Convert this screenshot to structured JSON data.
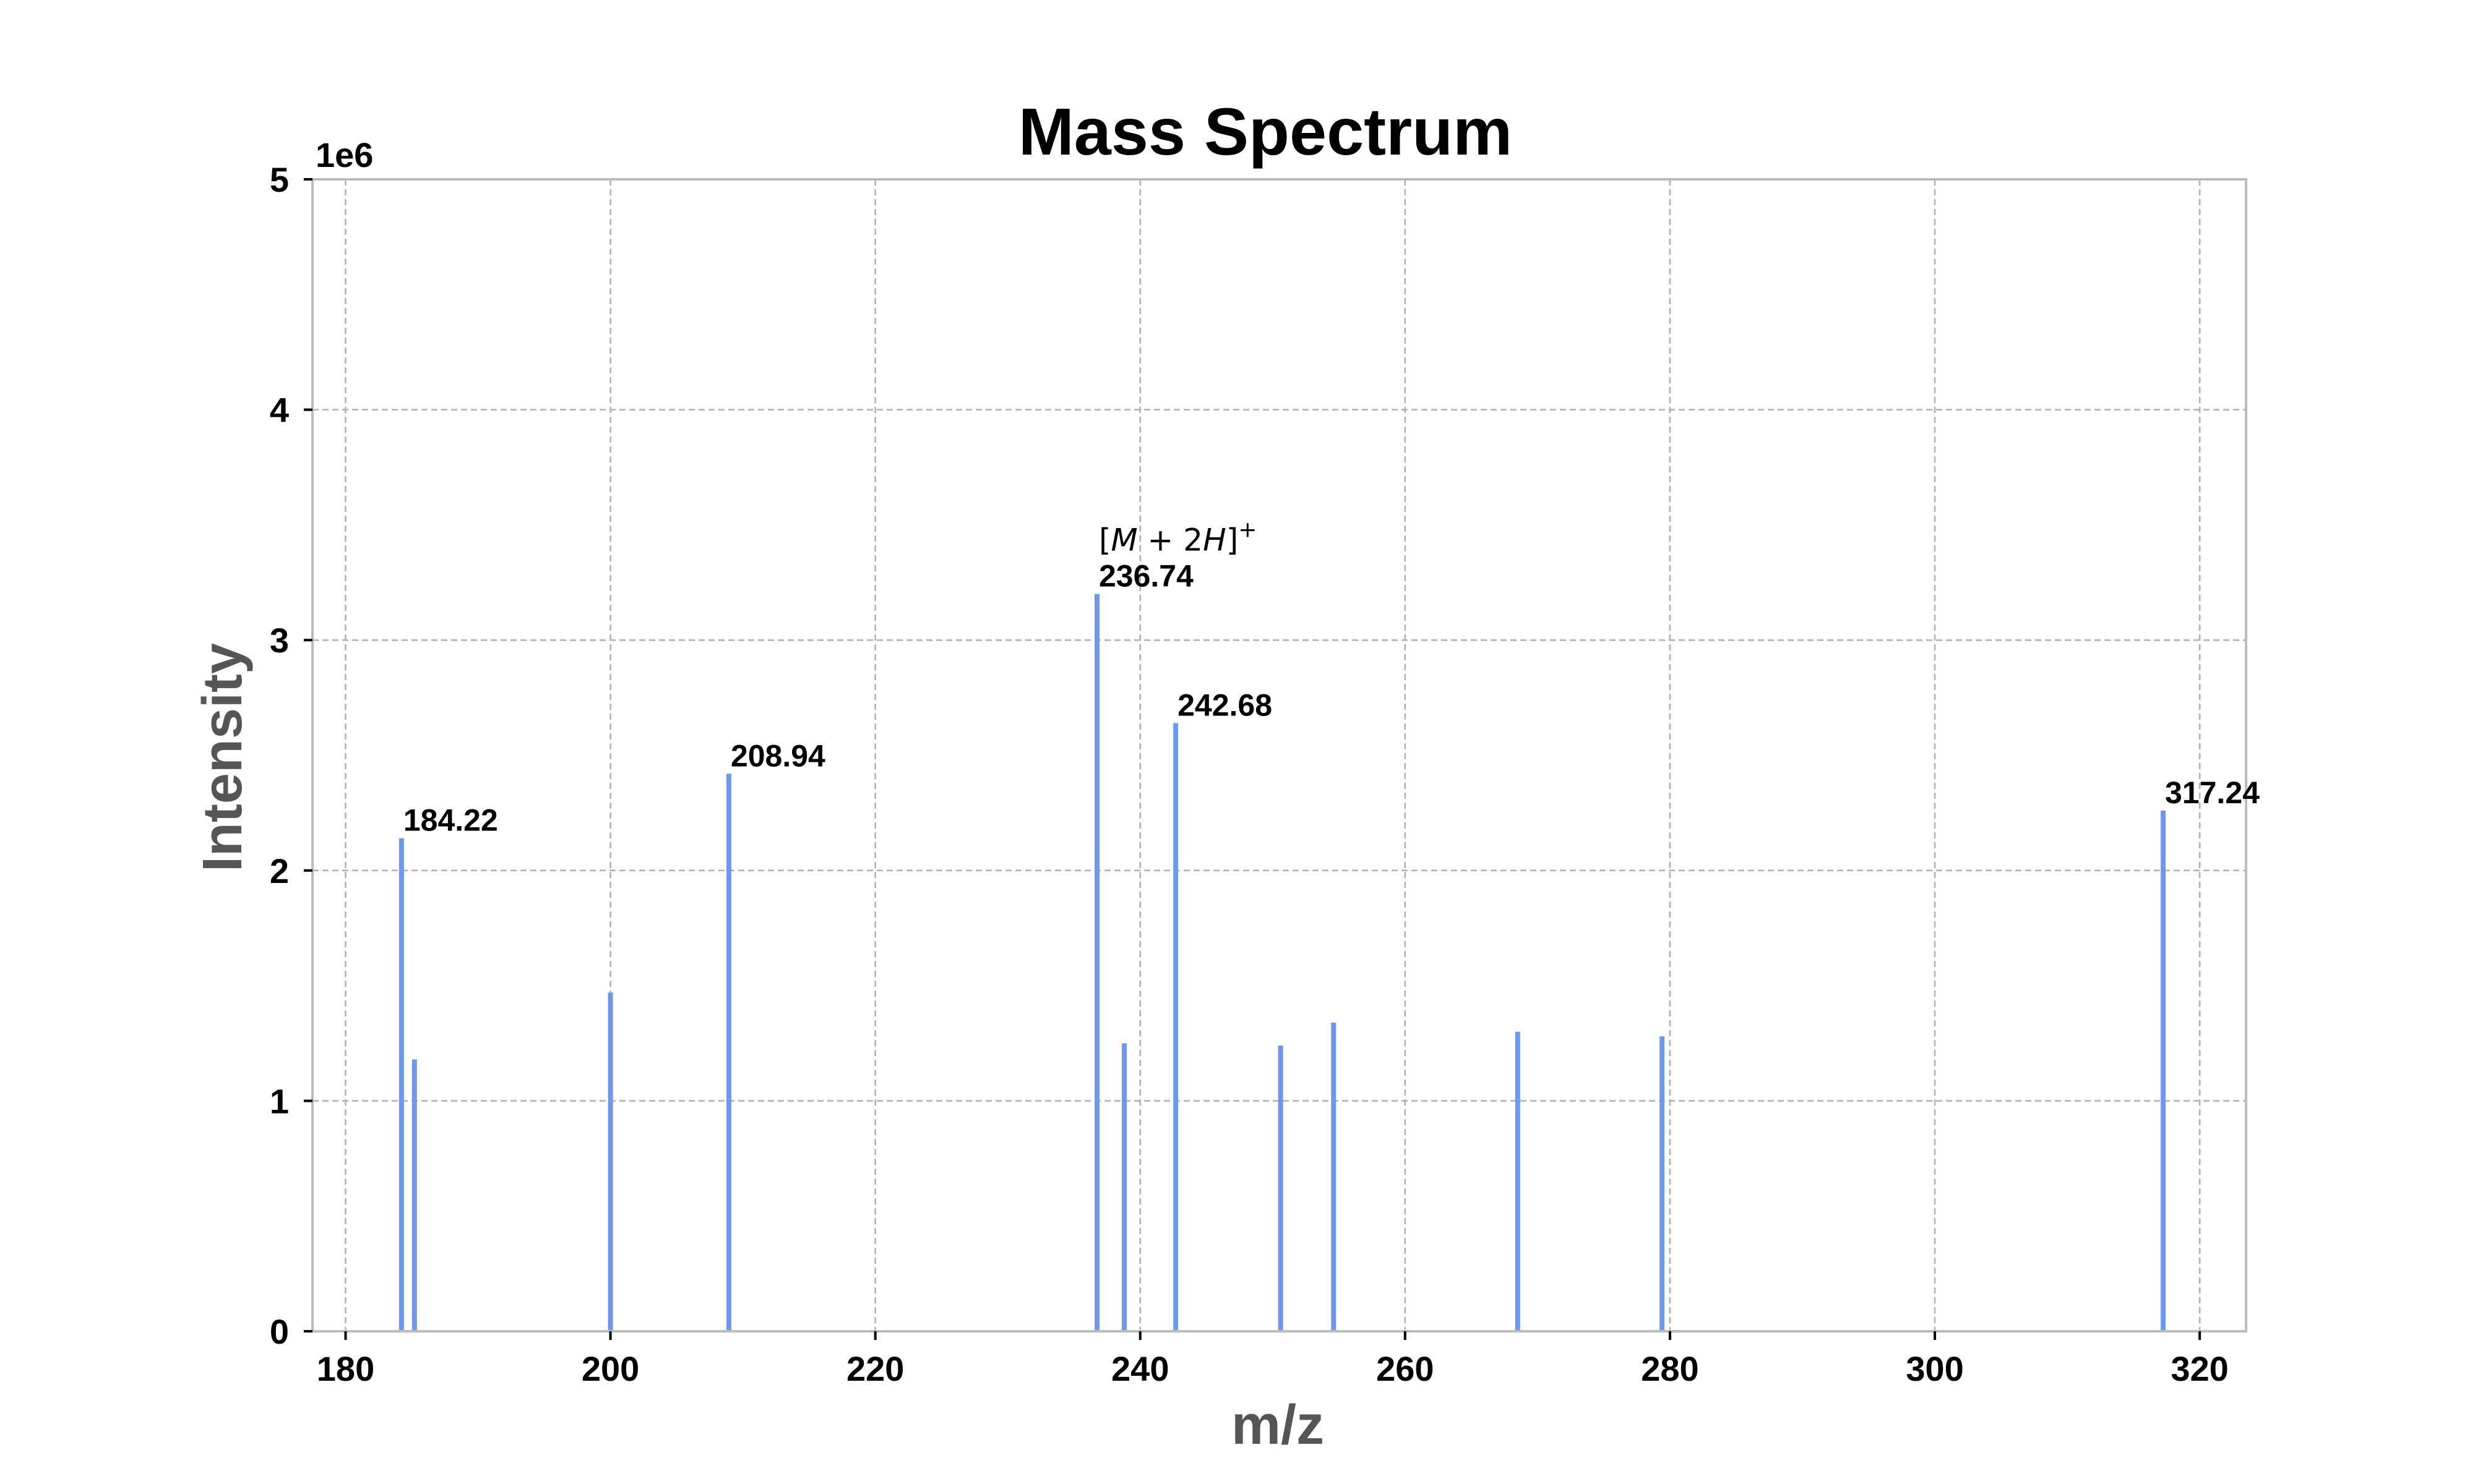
{
  "chart_data": {
    "type": "bar",
    "title": "Mass Spectrum",
    "xlabel": "m/z",
    "ylabel": "Intensity",
    "xlim": [
      177.5,
      323.5
    ],
    "ylim": [
      0,
      5000000
    ],
    "y_offset_label": "1e6",
    "xticks": [
      180,
      200,
      220,
      240,
      260,
      280,
      300,
      320
    ],
    "yticks": [
      0,
      1,
      2,
      3,
      4,
      5
    ],
    "grid": true,
    "series": [
      {
        "color": "#6f97ec",
        "peaks": [
          {
            "mz": 184.22,
            "intensity": 2140000,
            "label": "184.22"
          },
          {
            "mz": 185.2,
            "intensity": 1180000
          },
          {
            "mz": 200.0,
            "intensity": 1470000
          },
          {
            "mz": 208.94,
            "intensity": 2420000,
            "label": "208.94"
          },
          {
            "mz": 236.74,
            "intensity": 3200000,
            "label": "236.74",
            "annotation": "[M + 2H]+"
          },
          {
            "mz": 238.8,
            "intensity": 1250000
          },
          {
            "mz": 242.68,
            "intensity": 2640000,
            "label": "242.68"
          },
          {
            "mz": 250.6,
            "intensity": 1240000
          },
          {
            "mz": 254.6,
            "intensity": 1340000
          },
          {
            "mz": 268.5,
            "intensity": 1300000
          },
          {
            "mz": 279.4,
            "intensity": 1280000
          },
          {
            "mz": 317.24,
            "intensity": 2260000,
            "label": "317.24"
          }
        ]
      }
    ]
  }
}
